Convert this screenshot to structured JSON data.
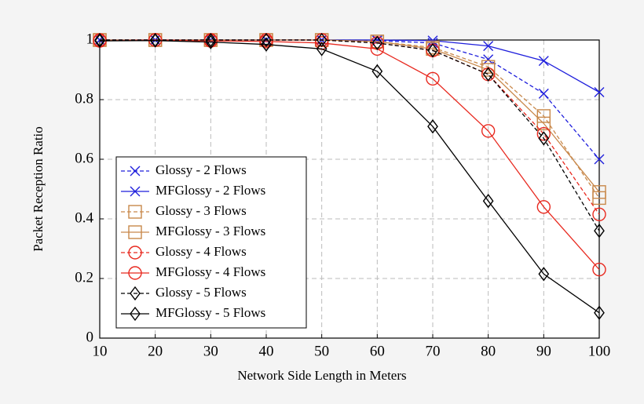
{
  "chart_data": {
    "type": "line",
    "xlabel": "Network Side Length in Meters",
    "ylabel": "Packet Reception Ratio",
    "x": [
      10,
      20,
      30,
      40,
      50,
      60,
      70,
      80,
      90,
      100
    ],
    "xlim": [
      10,
      100
    ],
    "xticks": [
      10,
      20,
      30,
      40,
      50,
      60,
      70,
      80,
      90,
      100
    ],
    "ylim": [
      0,
      1
    ],
    "yticks": [
      0,
      0.2,
      0.4,
      0.6,
      0.8,
      1
    ],
    "grid": true,
    "legend": "lower left",
    "series": [
      {
        "name": "Glossy - 2 Flows",
        "color": "#1f1fdc",
        "linestyle": "dashed",
        "marker": "x",
        "values": [
          1,
          1,
          1,
          1,
          1,
          0.998,
          0.99,
          0.935,
          0.82,
          0.6
        ]
      },
      {
        "name": "MFGlossy - 2 Flows",
        "color": "#1f1fdc",
        "linestyle": "solid",
        "marker": "x",
        "values": [
          1,
          1,
          1,
          1,
          1,
          1,
          0.998,
          0.98,
          0.93,
          0.825
        ]
      },
      {
        "name": "Glossy - 3 Flows",
        "color": "#c8884a",
        "linestyle": "dashed",
        "marker": "square",
        "values": [
          1,
          1,
          1,
          1,
          1,
          0.995,
          0.975,
          0.91,
          0.745,
          0.47
        ]
      },
      {
        "name": "MFGlossy - 3 Flows",
        "color": "#c8884a",
        "linestyle": "solid",
        "marker": "square",
        "values": [
          1,
          1,
          1,
          1,
          1,
          0.995,
          0.97,
          0.9,
          0.72,
          0.49
        ]
      },
      {
        "name": "Glossy - 4 Flows",
        "color": "#e8291f",
        "linestyle": "dashed",
        "marker": "circle",
        "values": [
          1,
          1,
          1,
          1,
          1,
          0.99,
          0.965,
          0.885,
          0.685,
          0.415
        ]
      },
      {
        "name": "MFGlossy - 4 Flows",
        "color": "#e8291f",
        "linestyle": "solid",
        "marker": "circle",
        "values": [
          0.997,
          1,
          0.997,
          0.995,
          0.99,
          0.97,
          0.87,
          0.695,
          0.44,
          0.23
        ]
      },
      {
        "name": "Glossy - 5 Flows",
        "color": "#000000",
        "linestyle": "dashed",
        "marker": "diamond",
        "values": [
          1,
          1,
          1,
          1,
          1,
          0.99,
          0.965,
          0.885,
          0.67,
          0.36
        ]
      },
      {
        "name": "MFGlossy - 5 Flows",
        "color": "#000000",
        "linestyle": "solid",
        "marker": "diamond",
        "values": [
          0.997,
          0.998,
          0.993,
          0.985,
          0.97,
          0.895,
          0.71,
          0.46,
          0.215,
          0.085
        ]
      }
    ]
  }
}
